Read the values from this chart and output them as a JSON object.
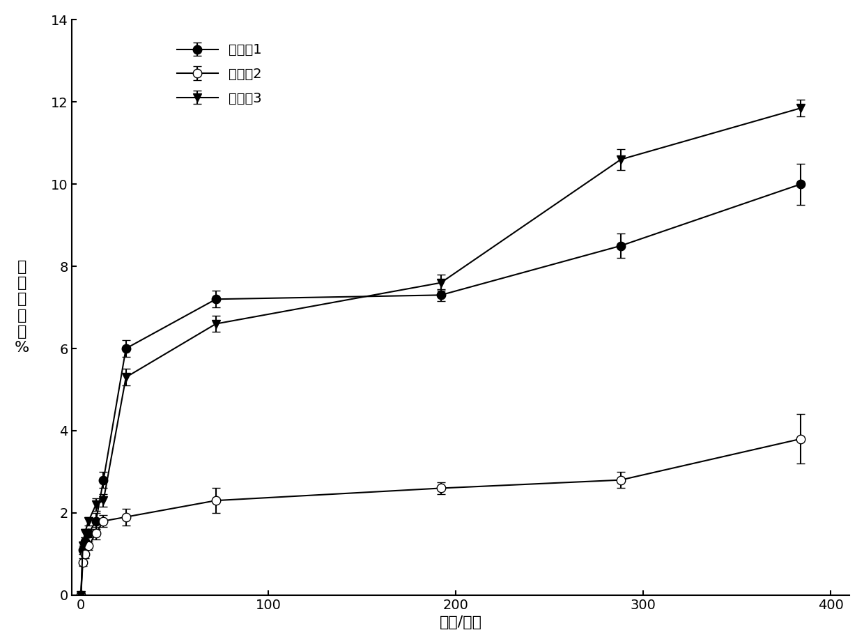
{
  "series": [
    {
      "label": "实施例1",
      "x": [
        0,
        1,
        2,
        4,
        8,
        12,
        24,
        72,
        192,
        288,
        384
      ],
      "y": [
        0,
        1.1,
        1.3,
        1.5,
        1.8,
        2.8,
        6.0,
        7.2,
        7.3,
        8.5,
        10.0
      ],
      "yerr": [
        0,
        0.1,
        0.1,
        0.1,
        0.2,
        0.2,
        0.2,
        0.2,
        0.15,
        0.3,
        0.5
      ],
      "marker": "o",
      "fillstyle": "full"
    },
    {
      "label": "实施例2",
      "x": [
        0,
        1,
        2,
        4,
        8,
        12,
        24,
        72,
        192,
        288,
        384
      ],
      "y": [
        0,
        0.8,
        1.0,
        1.2,
        1.5,
        1.8,
        1.9,
        2.3,
        2.6,
        2.8,
        3.8
      ],
      "yerr": [
        0,
        0.1,
        0.1,
        0.1,
        0.15,
        0.15,
        0.2,
        0.3,
        0.15,
        0.2,
        0.6
      ],
      "marker": "o",
      "fillstyle": "none"
    },
    {
      "label": "实施例3",
      "x": [
        0,
        1,
        2,
        4,
        8,
        12,
        24,
        72,
        192,
        288,
        384
      ],
      "y": [
        0,
        1.2,
        1.5,
        1.8,
        2.2,
        2.3,
        5.3,
        6.6,
        7.6,
        10.6,
        11.85
      ],
      "yerr": [
        0,
        0.1,
        0.1,
        0.1,
        0.15,
        0.15,
        0.2,
        0.2,
        0.2,
        0.25,
        0.2
      ],
      "marker": "v",
      "fillstyle": "full"
    }
  ],
  "xlabel": "时间/小时",
  "ylabel": "累\n计\n释\n放\n率\n%",
  "xlim": [
    -5,
    410
  ],
  "ylim": [
    0,
    14
  ],
  "yticks": [
    0,
    2,
    4,
    6,
    8,
    10,
    12,
    14
  ],
  "xticks": [
    0,
    100,
    200,
    300,
    400
  ],
  "line_color": "black",
  "background_color": "white",
  "title_fontsize": 14,
  "label_fontsize": 16,
  "tick_fontsize": 14,
  "legend_fontsize": 14
}
